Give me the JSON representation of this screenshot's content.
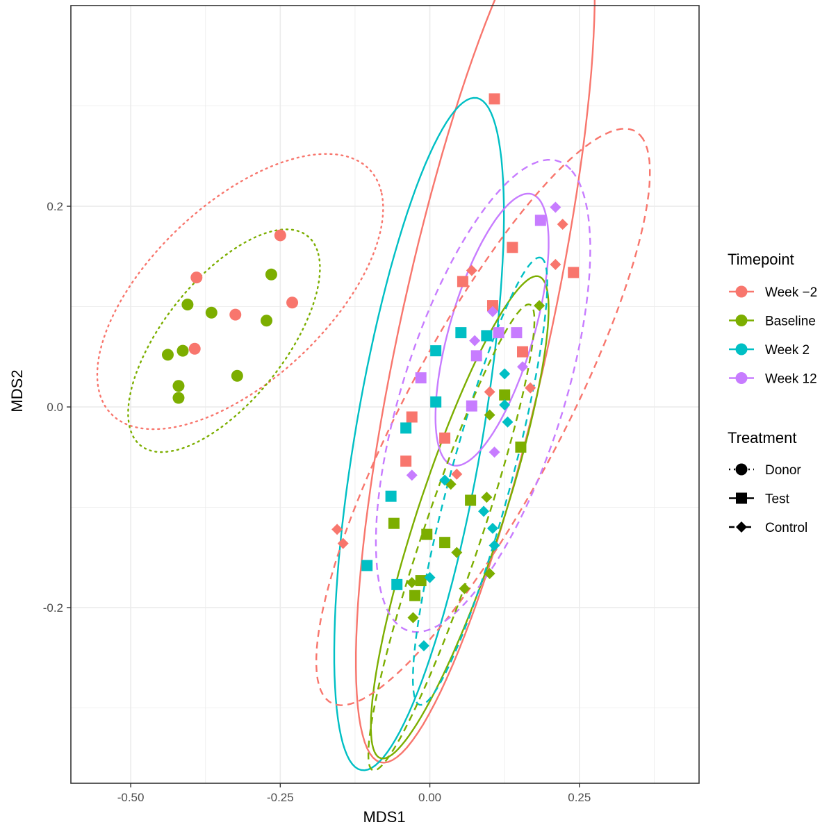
{
  "chart_data": {
    "type": "scatter",
    "xlabel": "MDS1",
    "ylabel": "MDS2",
    "xlim": [
      -0.6,
      0.45
    ],
    "ylim": [
      -0.375,
      0.4
    ],
    "x_ticks": [
      -0.5,
      -0.25,
      0.0,
      0.25
    ],
    "x_tick_labels": [
      "-0.50",
      "-0.25",
      "0.00",
      "0.25"
    ],
    "y_ticks": [
      -0.2,
      0.0,
      0.2
    ],
    "y_tick_labels": [
      "-0.2",
      "0.0",
      "0.2"
    ],
    "grid": true,
    "legend_position": "right",
    "colors": {
      "week_m2": "#F8766D",
      "baseline": "#7CAE00",
      "week_2": "#00BFC4",
      "week_12": "#C77CFF"
    },
    "timepoint_legend": {
      "title": "Timepoint",
      "items": [
        {
          "key": "week_m2",
          "label": "Week −2"
        },
        {
          "key": "baseline",
          "label": "Baseline"
        },
        {
          "key": "week_2",
          "label": "Week 2"
        },
        {
          "key": "week_12",
          "label": "Week 12"
        }
      ]
    },
    "treatment_legend": {
      "title": "Treatment",
      "items": [
        {
          "key": "donor",
          "label": "Donor",
          "shape": "circle",
          "linetype": "dotted"
        },
        {
          "key": "test",
          "label": "Test",
          "shape": "square",
          "linetype": "solid"
        },
        {
          "key": "control",
          "label": "Control",
          "shape": "diamond",
          "linetype": "dashed"
        }
      ]
    },
    "points": [
      {
        "timepoint": "week_m2",
        "treatment": "donor",
        "x": -0.25,
        "y": 0.171
      },
      {
        "timepoint": "week_m2",
        "treatment": "donor",
        "x": -0.39,
        "y": 0.129
      },
      {
        "timepoint": "week_m2",
        "treatment": "donor",
        "x": -0.23,
        "y": 0.104
      },
      {
        "timepoint": "week_m2",
        "treatment": "donor",
        "x": -0.325,
        "y": 0.092
      },
      {
        "timepoint": "week_m2",
        "treatment": "donor",
        "x": -0.393,
        "y": 0.058
      },
      {
        "timepoint": "baseline",
        "treatment": "donor",
        "x": -0.265,
        "y": 0.132
      },
      {
        "timepoint": "baseline",
        "treatment": "donor",
        "x": -0.405,
        "y": 0.102
      },
      {
        "timepoint": "baseline",
        "treatment": "donor",
        "x": -0.365,
        "y": 0.094
      },
      {
        "timepoint": "baseline",
        "treatment": "donor",
        "x": -0.273,
        "y": 0.086
      },
      {
        "timepoint": "baseline",
        "treatment": "donor",
        "x": -0.413,
        "y": 0.056
      },
      {
        "timepoint": "baseline",
        "treatment": "donor",
        "x": -0.438,
        "y": 0.052
      },
      {
        "timepoint": "baseline",
        "treatment": "donor",
        "x": -0.322,
        "y": 0.031
      },
      {
        "timepoint": "baseline",
        "treatment": "donor",
        "x": -0.42,
        "y": 0.021
      },
      {
        "timepoint": "baseline",
        "treatment": "donor",
        "x": -0.42,
        "y": 0.009
      },
      {
        "timepoint": "week_m2",
        "treatment": "test",
        "x": 0.108,
        "y": 0.307
      },
      {
        "timepoint": "week_m2",
        "treatment": "test",
        "x": 0.138,
        "y": 0.159
      },
      {
        "timepoint": "week_m2",
        "treatment": "test",
        "x": 0.24,
        "y": 0.134
      },
      {
        "timepoint": "week_m2",
        "treatment": "test",
        "x": 0.055,
        "y": 0.125
      },
      {
        "timepoint": "week_m2",
        "treatment": "test",
        "x": 0.105,
        "y": 0.101
      },
      {
        "timepoint": "week_m2",
        "treatment": "test",
        "x": 0.155,
        "y": 0.055
      },
      {
        "timepoint": "week_m2",
        "treatment": "test",
        "x": -0.03,
        "y": -0.01
      },
      {
        "timepoint": "week_m2",
        "treatment": "test",
        "x": 0.025,
        "y": -0.031
      },
      {
        "timepoint": "week_m2",
        "treatment": "test",
        "x": -0.04,
        "y": -0.054
      },
      {
        "timepoint": "baseline",
        "treatment": "test",
        "x": 0.125,
        "y": 0.012
      },
      {
        "timepoint": "baseline",
        "treatment": "test",
        "x": 0.152,
        "y": -0.04
      },
      {
        "timepoint": "baseline",
        "treatment": "test",
        "x": 0.068,
        "y": -0.093
      },
      {
        "timepoint": "baseline",
        "treatment": "test",
        "x": -0.06,
        "y": -0.116
      },
      {
        "timepoint": "baseline",
        "treatment": "test",
        "x": -0.005,
        "y": -0.127
      },
      {
        "timepoint": "baseline",
        "treatment": "test",
        "x": 0.025,
        "y": -0.135
      },
      {
        "timepoint": "baseline",
        "treatment": "test",
        "x": -0.015,
        "y": -0.173
      },
      {
        "timepoint": "baseline",
        "treatment": "test",
        "x": -0.025,
        "y": -0.188
      },
      {
        "timepoint": "week_2",
        "treatment": "test",
        "x": 0.052,
        "y": 0.074
      },
      {
        "timepoint": "week_2",
        "treatment": "test",
        "x": 0.095,
        "y": 0.071
      },
      {
        "timepoint": "week_2",
        "treatment": "test",
        "x": 0.01,
        "y": 0.056
      },
      {
        "timepoint": "week_2",
        "treatment": "test",
        "x": 0.01,
        "y": 0.005
      },
      {
        "timepoint": "week_2",
        "treatment": "test",
        "x": -0.04,
        "y": -0.021
      },
      {
        "timepoint": "week_2",
        "treatment": "test",
        "x": -0.065,
        "y": -0.089
      },
      {
        "timepoint": "week_2",
        "treatment": "test",
        "x": -0.105,
        "y": -0.158
      },
      {
        "timepoint": "week_2",
        "treatment": "test",
        "x": -0.055,
        "y": -0.177
      },
      {
        "timepoint": "week_12",
        "treatment": "test",
        "x": 0.185,
        "y": 0.186
      },
      {
        "timepoint": "week_12",
        "treatment": "test",
        "x": 0.115,
        "y": 0.074
      },
      {
        "timepoint": "week_12",
        "treatment": "test",
        "x": 0.145,
        "y": 0.074
      },
      {
        "timepoint": "week_12",
        "treatment": "test",
        "x": 0.078,
        "y": 0.051
      },
      {
        "timepoint": "week_12",
        "treatment": "test",
        "x": -0.015,
        "y": 0.029
      },
      {
        "timepoint": "week_12",
        "treatment": "test",
        "x": 0.07,
        "y": 0.001
      },
      {
        "timepoint": "week_m2",
        "treatment": "control",
        "x": 0.222,
        "y": 0.182
      },
      {
        "timepoint": "week_m2",
        "treatment": "control",
        "x": 0.21,
        "y": 0.142
      },
      {
        "timepoint": "week_m2",
        "treatment": "control",
        "x": 0.07,
        "y": 0.136
      },
      {
        "timepoint": "week_m2",
        "treatment": "control",
        "x": 0.168,
        "y": 0.019
      },
      {
        "timepoint": "week_m2",
        "treatment": "control",
        "x": 0.1,
        "y": 0.015
      },
      {
        "timepoint": "week_m2",
        "treatment": "control",
        "x": 0.045,
        "y": -0.067
      },
      {
        "timepoint": "week_m2",
        "treatment": "control",
        "x": -0.155,
        "y": -0.122
      },
      {
        "timepoint": "week_m2",
        "treatment": "control",
        "x": -0.145,
        "y": -0.136
      },
      {
        "timepoint": "baseline",
        "treatment": "control",
        "x": 0.183,
        "y": 0.101
      },
      {
        "timepoint": "baseline",
        "treatment": "control",
        "x": 0.1,
        "y": -0.008
      },
      {
        "timepoint": "baseline",
        "treatment": "control",
        "x": 0.035,
        "y": -0.077
      },
      {
        "timepoint": "baseline",
        "treatment": "control",
        "x": 0.095,
        "y": -0.09
      },
      {
        "timepoint": "baseline",
        "treatment": "control",
        "x": 0.045,
        "y": -0.145
      },
      {
        "timepoint": "baseline",
        "treatment": "control",
        "x": -0.03,
        "y": -0.175
      },
      {
        "timepoint": "baseline",
        "treatment": "control",
        "x": 0.058,
        "y": -0.181
      },
      {
        "timepoint": "baseline",
        "treatment": "control",
        "x": 0.1,
        "y": -0.166
      },
      {
        "timepoint": "baseline",
        "treatment": "control",
        "x": -0.028,
        "y": -0.21
      },
      {
        "timepoint": "week_2",
        "treatment": "control",
        "x": 0.125,
        "y": 0.033
      },
      {
        "timepoint": "week_2",
        "treatment": "control",
        "x": 0.125,
        "y": 0.002
      },
      {
        "timepoint": "week_2",
        "treatment": "control",
        "x": 0.13,
        "y": -0.015
      },
      {
        "timepoint": "week_2",
        "treatment": "control",
        "x": 0.025,
        "y": -0.073
      },
      {
        "timepoint": "week_2",
        "treatment": "control",
        "x": 0.09,
        "y": -0.104
      },
      {
        "timepoint": "week_2",
        "treatment": "control",
        "x": 0.105,
        "y": -0.121
      },
      {
        "timepoint": "week_2",
        "treatment": "control",
        "x": 0.108,
        "y": -0.138
      },
      {
        "timepoint": "week_2",
        "treatment": "control",
        "x": 0.0,
        "y": -0.17
      },
      {
        "timepoint": "week_2",
        "treatment": "control",
        "x": -0.01,
        "y": -0.238
      },
      {
        "timepoint": "week_12",
        "treatment": "control",
        "x": 0.21,
        "y": 0.199
      },
      {
        "timepoint": "week_12",
        "treatment": "control",
        "x": 0.105,
        "y": 0.095
      },
      {
        "timepoint": "week_12",
        "treatment": "control",
        "x": 0.075,
        "y": 0.066
      },
      {
        "timepoint": "week_12",
        "treatment": "control",
        "x": 0.155,
        "y": 0.04
      },
      {
        "timepoint": "week_12",
        "treatment": "control",
        "x": 0.108,
        "y": -0.045
      },
      {
        "timepoint": "week_12",
        "treatment": "control",
        "x": -0.03,
        "y": -0.068
      }
    ],
    "ellipses": [
      {
        "timepoint": "week_m2",
        "treatment": "donor",
        "cx": -0.317,
        "cy": 0.115,
        "a": 0.256,
        "b": 0.102,
        "angle": 23
      },
      {
        "timepoint": "baseline",
        "treatment": "donor",
        "cx": -0.344,
        "cy": 0.066,
        "a": 0.18,
        "b": 0.075,
        "angle": 30
      },
      {
        "timepoint": "week_m2",
        "treatment": "test",
        "cx": 0.076,
        "cy": 0.078,
        "a": 0.461,
        "b": 0.12,
        "angle": 69
      },
      {
        "timepoint": "week_2",
        "treatment": "test",
        "cx": -0.018,
        "cy": -0.027,
        "a": 0.349,
        "b": 0.103,
        "angle": 73
      },
      {
        "timepoint": "baseline",
        "treatment": "test",
        "cx": 0.05,
        "cy": -0.11,
        "a": 0.275,
        "b": 0.065,
        "angle": 60
      },
      {
        "timepoint": "week_12",
        "treatment": "test",
        "cx": 0.104,
        "cy": 0.077,
        "a": 0.152,
        "b": 0.065,
        "angle": 60
      },
      {
        "timepoint": "week_m2",
        "treatment": "control",
        "cx": 0.089,
        "cy": -0.01,
        "a": 0.385,
        "b": 0.11,
        "angle": 46
      },
      {
        "timepoint": "week_12",
        "treatment": "control",
        "cx": 0.089,
        "cy": 0.011,
        "a": 0.269,
        "b": 0.123,
        "angle": 57
      },
      {
        "timepoint": "week_2",
        "treatment": "control",
        "cx": 0.084,
        "cy": -0.074,
        "a": 0.245,
        "b": 0.048,
        "angle": 65
      },
      {
        "timepoint": "baseline",
        "treatment": "control",
        "cx": 0.036,
        "cy": -0.13,
        "a": 0.267,
        "b": 0.044,
        "angle": 60
      }
    ]
  }
}
